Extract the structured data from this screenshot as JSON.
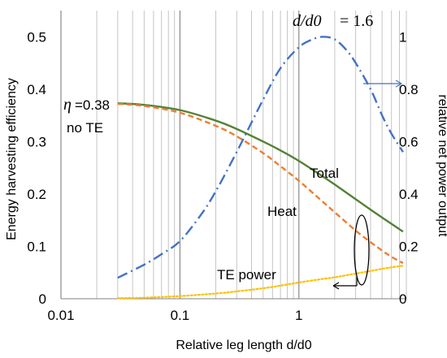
{
  "chart_data": {
    "type": "line",
    "xlabel": "Relative leg length d/d0",
    "ylabel_left": "Energy harvesting efficiency",
    "ylabel_right": "relative net power output",
    "x_scale": "log",
    "xlim": [
      0.01,
      8
    ],
    "ylim_left": [
      0,
      0.55
    ],
    "ylim_right": [
      0,
      1.1
    ],
    "x_ticks": [
      {
        "value": 0.01,
        "label": "0.01"
      },
      {
        "value": 0.1,
        "label": "0.1"
      },
      {
        "value": 1,
        "label": "1"
      }
    ],
    "y_ticks_left": [
      {
        "value": 0,
        "label": "0"
      },
      {
        "value": 0.1,
        "label": "0.1"
      },
      {
        "value": 0.2,
        "label": "0.2"
      },
      {
        "value": 0.3,
        "label": "0.3"
      },
      {
        "value": 0.4,
        "label": "0.4"
      },
      {
        "value": 0.5,
        "label": "0.5"
      }
    ],
    "y_ticks_right": [
      {
        "value": 0,
        "label": "0"
      },
      {
        "value": 0.2,
        "label": "0.2"
      },
      {
        "value": 0.4,
        "label": "0.4"
      },
      {
        "value": 0.6,
        "label": "0.6"
      },
      {
        "value": 0.8,
        "label": "0.8"
      },
      {
        "value": 1,
        "label": "1"
      }
    ],
    "grid": "vertical log gridlines",
    "series": [
      {
        "name": "Total",
        "axis": "left",
        "style": "solid",
        "color": "#548235",
        "x": [
          0.03,
          0.05,
          0.1,
          0.2,
          0.3,
          0.5,
          0.7,
          1,
          1.5,
          2,
          3,
          4,
          5,
          6,
          7.5
        ],
        "y": [
          0.373,
          0.37,
          0.36,
          0.34,
          0.324,
          0.3,
          0.283,
          0.263,
          0.237,
          0.218,
          0.19,
          0.17,
          0.155,
          0.143,
          0.128
        ]
      },
      {
        "name": "Heat",
        "axis": "left",
        "style": "dashed",
        "color": "#ED7D31",
        "x": [
          0.03,
          0.05,
          0.1,
          0.2,
          0.3,
          0.5,
          0.7,
          1,
          1.5,
          2,
          3,
          4,
          5,
          6,
          7.5
        ],
        "y": [
          0.372,
          0.368,
          0.355,
          0.33,
          0.31,
          0.278,
          0.253,
          0.225,
          0.19,
          0.165,
          0.13,
          0.108,
          0.092,
          0.08,
          0.068
        ]
      },
      {
        "name": "TE power",
        "axis": "left",
        "style": "dotted",
        "color": "#FFC000",
        "x": [
          0.03,
          0.05,
          0.1,
          0.2,
          0.3,
          0.5,
          0.7,
          1,
          1.5,
          2,
          3,
          4,
          5,
          6,
          7.5
        ],
        "y": [
          0.001,
          0.002,
          0.005,
          0.01,
          0.014,
          0.02,
          0.025,
          0.031,
          0.037,
          0.041,
          0.048,
          0.053,
          0.057,
          0.06,
          0.063
        ]
      },
      {
        "name": "relative net power output",
        "axis": "right",
        "style": "dash-dot",
        "color": "#4472C4",
        "x": [
          0.03,
          0.05,
          0.07,
          0.1,
          0.15,
          0.2,
          0.3,
          0.5,
          0.7,
          1,
          1.3,
          1.6,
          2,
          2.5,
          3,
          4,
          5,
          6,
          7.5
        ],
        "y": [
          0.08,
          0.13,
          0.17,
          0.22,
          0.32,
          0.41,
          0.56,
          0.76,
          0.88,
          0.96,
          0.99,
          1.0,
          0.99,
          0.95,
          0.9,
          0.8,
          0.7,
          0.63,
          0.56
        ]
      }
    ],
    "annotations": {
      "eta_symbol": "η",
      "eta_value": "=0.38",
      "no_te": "no TE",
      "d_ratio": "d/d0",
      "d_value": "= 1.6",
      "total": "Total",
      "heat": "Heat",
      "te_power": "TE power"
    }
  }
}
